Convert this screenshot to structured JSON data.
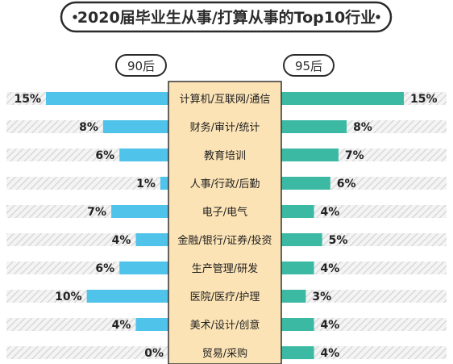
{
  "colors": {
    "left": "#50c3ea",
    "right": "#3cb9a3",
    "center": "#fbe3b5"
  },
  "chart_data": {
    "type": "bar",
    "title": "2020届毕业生从事/打算从事的Top10行业",
    "categories": [
      "计算机/互联网/通信",
      "财务/审计/统计",
      "教育培训",
      "人事/行政/后勤",
      "电子/电气",
      "金融/银行/证券/投资",
      "生产管理/研发",
      "医院/医疗/护理",
      "美术/设计/创意",
      "贸易/采购"
    ],
    "series": [
      {
        "name": "90后",
        "values": [
          15,
          8,
          6,
          1,
          7,
          4,
          6,
          10,
          4,
          0
        ],
        "labels": [
          "15%",
          "8%",
          "6%",
          "1%",
          "7%",
          "4%",
          "6%",
          "10%",
          "4%",
          "0%"
        ]
      },
      {
        "name": "95后",
        "values": [
          15,
          8,
          7,
          6,
          4,
          5,
          4,
          3,
          4,
          4
        ],
        "labels": [
          "15%",
          "8%",
          "7%",
          "6%",
          "4%",
          "5%",
          "4%",
          "3%",
          "4%",
          "4%"
        ]
      }
    ],
    "xlim": [
      0,
      15
    ],
    "unit": "%"
  }
}
